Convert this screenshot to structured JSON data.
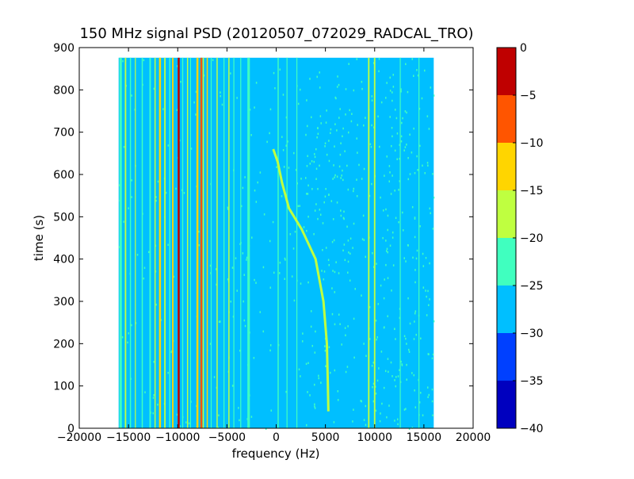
{
  "chart_data": {
    "type": "heatmap",
    "title": "150 MHz signal PSD (20120507_072029_RADCAL_TRO)",
    "xlabel": "frequency (Hz)",
    "ylabel": "time (s)",
    "xlim": [
      -20000,
      20000
    ],
    "ylim": [
      0,
      900
    ],
    "xticks": [
      -20000,
      -15000,
      -10000,
      -5000,
      0,
      5000,
      10000,
      15000,
      20000
    ],
    "yticks": [
      0,
      100,
      200,
      300,
      400,
      500,
      600,
      700,
      800,
      900
    ],
    "grid": false,
    "data_extent": {
      "x": [
        -16000,
        16000
      ],
      "y": [
        0,
        876
      ]
    },
    "background_level": -27.5,
    "colorbar": {
      "levels": [
        -40,
        -35,
        -30,
        -25,
        -20,
        -15,
        -10,
        -5,
        0
      ],
      "tick_labels": [
        "0",
        "−5",
        "−10",
        "−15",
        "−20",
        "−25",
        "−30",
        "−35",
        "−40"
      ],
      "colors": [
        "#0000bf",
        "#0040ff",
        "#00bfff",
        "#40ffbf",
        "#bfff40",
        "#ffd500",
        "#ff5500",
        "#bf0000"
      ]
    },
    "steady_lines": [
      {
        "x": -15800,
        "width": 250,
        "level": -22.5
      },
      {
        "x": -15300,
        "width": 150,
        "level": -17.5
      },
      {
        "x": -14800,
        "width": 120,
        "level": -22.5
      },
      {
        "x": -14300,
        "width": 100,
        "level": -17.5
      },
      {
        "x": -13600,
        "width": 120,
        "level": -22.5
      },
      {
        "x": -12800,
        "width": 150,
        "level": -22.5
      },
      {
        "x": -12300,
        "width": 120,
        "level": -17.5
      },
      {
        "x": -11800,
        "width": 200,
        "level": -12.5
      },
      {
        "x": -11300,
        "width": 150,
        "level": -17.5
      },
      {
        "x": -10800,
        "width": 120,
        "level": -22.5
      },
      {
        "x": -10500,
        "width": 150,
        "level": -12.5
      },
      {
        "x": -9900,
        "width": 200,
        "level": -2.5
      },
      {
        "x": -9500,
        "width": 120,
        "level": -22.5
      },
      {
        "x": -9000,
        "width": 120,
        "level": -17.5
      },
      {
        "x": -8700,
        "width": 100,
        "level": -22.5
      },
      {
        "x": -8000,
        "width": 200,
        "level": -12.5
      },
      {
        "x": -7600,
        "width": 200,
        "level": -7.5
      },
      {
        "x": -7400,
        "width": 120,
        "level": -17.5
      },
      {
        "x": -7000,
        "width": 120,
        "level": -12.5
      },
      {
        "x": -6600,
        "width": 100,
        "level": -22.5
      },
      {
        "x": -6000,
        "width": 120,
        "level": -17.5
      },
      {
        "x": -5300,
        "width": 100,
        "level": -22.5
      },
      {
        "x": -4800,
        "width": 120,
        "level": -17.5
      },
      {
        "x": -4300,
        "width": 100,
        "level": -22.5
      },
      {
        "x": -3600,
        "width": 100,
        "level": -22.5
      },
      {
        "x": -2800,
        "width": 250,
        "level": -22.5
      },
      {
        "x": 200,
        "width": 120,
        "level": -22.5
      },
      {
        "x": 1100,
        "width": 100,
        "level": -22.5
      },
      {
        "x": 2100,
        "width": 100,
        "level": -22.5
      },
      {
        "x": 9400,
        "width": 150,
        "level": -17.5
      },
      {
        "x": 10000,
        "width": 150,
        "level": -17.5
      },
      {
        "x": 12600,
        "width": 100,
        "level": -22.5
      },
      {
        "x": 14500,
        "width": 100,
        "level": -22.5
      }
    ],
    "drift_track": {
      "level": -17.5,
      "points": [
        {
          "x": 5300,
          "y": 40
        },
        {
          "x": 5250,
          "y": 100
        },
        {
          "x": 5150,
          "y": 200
        },
        {
          "x": 4800,
          "y": 300
        },
        {
          "x": 4000,
          "y": 400
        },
        {
          "x": 2600,
          "y": 470
        },
        {
          "x": 1300,
          "y": 520
        },
        {
          "x": 600,
          "y": 580
        },
        {
          "x": 150,
          "y": 630
        },
        {
          "x": -300,
          "y": 660
        }
      ]
    }
  }
}
